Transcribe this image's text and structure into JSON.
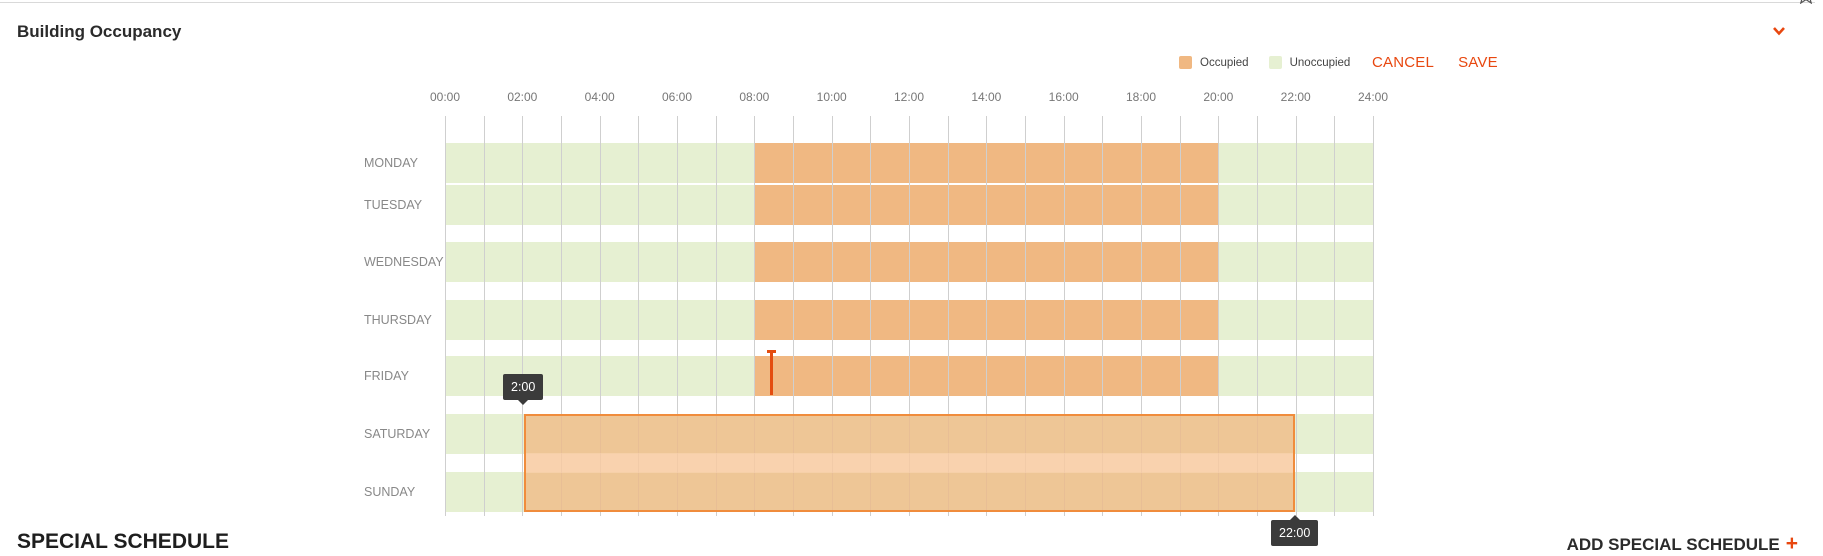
{
  "section": {
    "title": "Building Occupancy",
    "collapse_icon": "chevron-down-icon",
    "accent_color": "#e8470f"
  },
  "legend": {
    "occupied_label": "Occupied",
    "occupied_color": "#f0b882",
    "unoccupied_label": "Unoccupied",
    "unoccupied_color": "#e6f0d2"
  },
  "actions": {
    "cancel_label": "CANCEL",
    "save_label": "SAVE"
  },
  "schedule": {
    "hour_labels": [
      "00:00",
      "02:00",
      "04:00",
      "06:00",
      "08:00",
      "10:00",
      "12:00",
      "14:00",
      "16:00",
      "18:00",
      "20:00",
      "22:00",
      "24:00"
    ],
    "days": [
      {
        "label": "MONDAY",
        "occupied_start": 8,
        "occupied_end": 20
      },
      {
        "label": "TUESDAY",
        "occupied_start": 8,
        "occupied_end": 20
      },
      {
        "label": "WEDNESDAY",
        "occupied_start": 8,
        "occupied_end": 20
      },
      {
        "label": "THURSDAY",
        "occupied_start": 8,
        "occupied_end": 20
      },
      {
        "label": "FRIDAY",
        "occupied_start": 8,
        "occupied_end": 20
      },
      {
        "label": "SATURDAY",
        "occupied_start": null,
        "occupied_end": null
      },
      {
        "label": "SUNDAY",
        "occupied_start": null,
        "occupied_end": null
      }
    ],
    "selection": {
      "start_label": "2:00",
      "end_label": "22:00",
      "days": [
        "SATURDAY",
        "SUNDAY"
      ]
    }
  },
  "special_schedule": {
    "title": "SPECIAL SCHEDULE",
    "add_label": "ADD SPECIAL SCHEDULE",
    "add_icon": "plus-icon"
  }
}
